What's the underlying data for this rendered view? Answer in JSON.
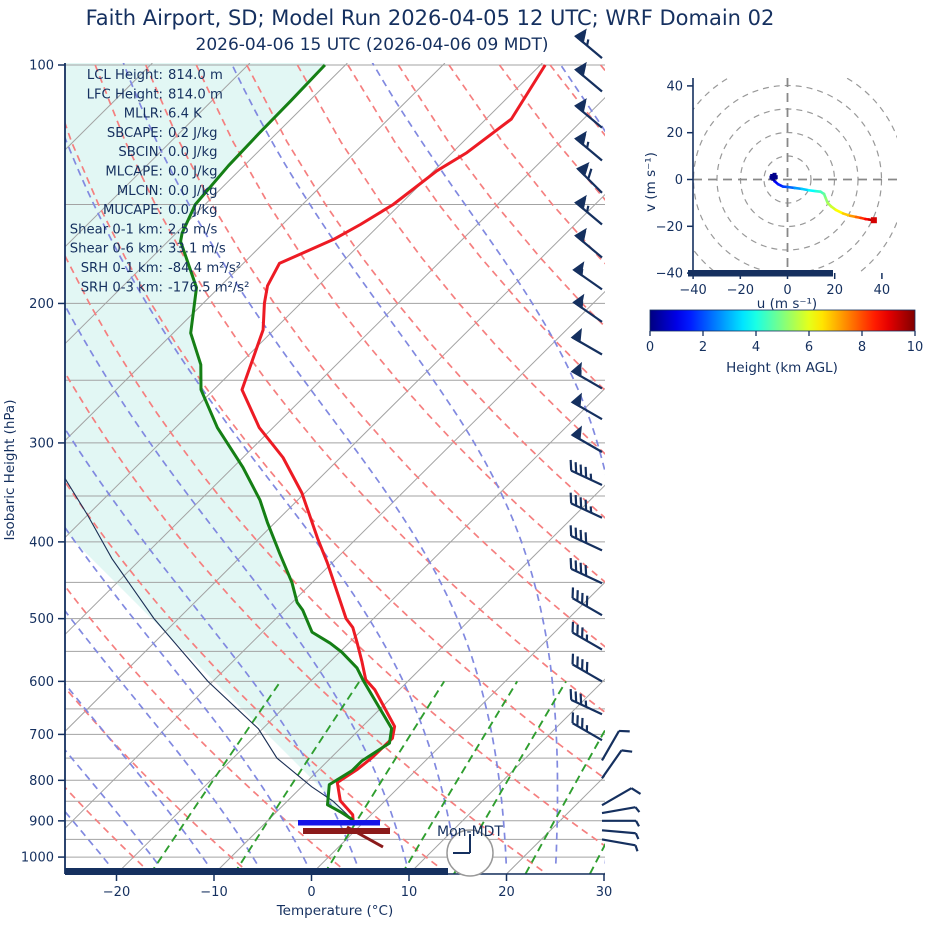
{
  "header": {
    "title": "Faith Airport, SD; Model Run 2026-04-05 12 UTC; WRF Domain 02",
    "subtitle": "2026-04-06 15 UTC  (2026-04-06 09 MDT)"
  },
  "colors": {
    "navy": "#15305f",
    "temperature": "#ed1b24",
    "dewpoint": "#157f15",
    "parcel": "#1b2f55",
    "dry_adiabat": "#f57f7f",
    "moist_adiabat": "#8189e0",
    "mixing_ratio": "#2f9e2f",
    "gridline": "#a3a3a3",
    "shading": "#e2f7f4",
    "surface_temp_bar": "#8b1a1a",
    "surface_dew_bar": "#1414e8",
    "hodo_ring": "#999999"
  },
  "skewt": {
    "xlabel": "Temperature (°C)",
    "ylabel": "Isobaric Height (hPa)",
    "x_ticks": [
      "−20",
      "−10",
      "0",
      "10",
      "20",
      "30"
    ],
    "x_tick_values": [
      -20,
      -10,
      0,
      10,
      20,
      30
    ],
    "y_ticks": [
      "100",
      "200",
      "300",
      "400",
      "500",
      "600",
      "700",
      "800",
      "900",
      "1000"
    ],
    "y_tick_values": [
      100,
      200,
      300,
      400,
      500,
      600,
      700,
      800,
      900,
      1000
    ],
    "clock_label": "Mon-MDT",
    "stats": [
      {
        "label": "LCL Height:",
        "value": "814.0 m"
      },
      {
        "label": "LFC Height:",
        "value": "814.0 m"
      },
      {
        "label": "MLLR:",
        "value": "6.4 K"
      },
      {
        "label": "SBCAPE:",
        "value": "0.2 J/kg"
      },
      {
        "label": "SBCIN:",
        "value": "0.0 J/kg"
      },
      {
        "label": "MLCAPE:",
        "value": "0.0 J/kg"
      },
      {
        "label": "MLCIN:",
        "value": "0.0 J/kg"
      },
      {
        "label": "MUCAPE:",
        "value": "0.0 J/kg"
      },
      {
        "label": "Shear 0-1 km:",
        "value": "2.5 m/s"
      },
      {
        "label": "Shear 0-6 km:",
        "value": "33.1 m/s"
      },
      {
        "label": "SRH 0-1 km:",
        "value": "-84.4 m²/s²"
      },
      {
        "label": "SRH 0-3 km:",
        "value": "-176.5 m²/s²"
      }
    ]
  },
  "chart_data": {
    "type": "skewt-sounding",
    "pressure_range_hPa": [
      100,
      1050
    ],
    "temperature_range_C": [
      -25.5,
      30.1
    ],
    "surface_pressure_hPa": 898,
    "temperature_profile_pT": [
      [
        898,
        -1.3
      ],
      [
        884,
        -1.9
      ],
      [
        849,
        -4.6
      ],
      [
        805,
        -6.8
      ],
      [
        776,
        -6.1
      ],
      [
        750,
        -5.8
      ],
      [
        708,
        -5.7
      ],
      [
        684,
        -6.7
      ],
      [
        615,
        -12.5
      ],
      [
        597,
        -14.5
      ],
      [
        567,
        -16.7
      ],
      [
        536,
        -19.2
      ],
      [
        513,
        -21.2
      ],
      [
        500,
        -22.8
      ],
      [
        425,
        -30.5
      ],
      [
        396,
        -34.0
      ],
      [
        347,
        -40.3
      ],
      [
        313,
        -45.9
      ],
      [
        287,
        -51.4
      ],
      [
        257,
        -57.1
      ],
      [
        216,
        -61.1
      ],
      [
        200,
        -63.7
      ],
      [
        190,
        -65.2
      ],
      [
        178,
        -66.3
      ],
      [
        166,
        -63.2
      ],
      [
        159,
        -62.0
      ],
      [
        150,
        -60.7
      ],
      [
        136,
        -59.7
      ],
      [
        129,
        -58.5
      ],
      [
        117,
        -57.4
      ],
      [
        100,
        -59.5
      ]
    ],
    "dewpoint_profile_pT": [
      [
        898,
        -1.3
      ],
      [
        879,
        -3.2
      ],
      [
        859,
        -5.5
      ],
      [
        810,
        -7.4
      ],
      [
        778,
        -6.5
      ],
      [
        756,
        -6.5
      ],
      [
        718,
        -5.5
      ],
      [
        688,
        -6.8
      ],
      [
        598,
        -14.7
      ],
      [
        577,
        -16.6
      ],
      [
        551,
        -19.8
      ],
      [
        537,
        -21.9
      ],
      [
        520,
        -24.9
      ],
      [
        488,
        -28.1
      ],
      [
        477,
        -29.5
      ],
      [
        450,
        -32.1
      ],
      [
        414,
        -36.3
      ],
      [
        378,
        -40.8
      ],
      [
        354,
        -43.9
      ],
      [
        322,
        -49.0
      ],
      [
        287,
        -55.7
      ],
      [
        257,
        -61.3
      ],
      [
        239,
        -63.9
      ],
      [
        218,
        -68.2
      ],
      [
        191,
        -72.3
      ],
      [
        167,
        -78.7
      ],
      [
        163,
        -79.4
      ],
      [
        150,
        -81.0
      ],
      [
        134,
        -81.6
      ],
      [
        122,
        -81.8
      ],
      [
        111,
        -81.9
      ],
      [
        100,
        -82.1
      ]
    ],
    "parcel_profile_pT": [
      [
        898,
        -1.3
      ],
      [
        850,
        -5.3
      ],
      [
        815,
        -9.0
      ],
      [
        750,
        -15.5
      ],
      [
        689,
        -20.4
      ],
      [
        600,
        -30.5
      ],
      [
        500,
        -42.5
      ],
      [
        420,
        -53.0
      ],
      [
        370,
        -60.0
      ],
      [
        332,
        -66.2
      ]
    ],
    "wind_barbs": [
      {
        "p": 98,
        "dir": 310,
        "spd": 65
      },
      {
        "p": 108,
        "dir": 310,
        "spd": 60
      },
      {
        "p": 120,
        "dir": 310,
        "spd": 60
      },
      {
        "p": 132,
        "dir": 310,
        "spd": 65
      },
      {
        "p": 145,
        "dir": 315,
        "spd": 70
      },
      {
        "p": 159,
        "dir": 310,
        "spd": 65
      },
      {
        "p": 175,
        "dir": 310,
        "spd": 60
      },
      {
        "p": 192,
        "dir": 305,
        "spd": 55
      },
      {
        "p": 211,
        "dir": 305,
        "spd": 55
      },
      {
        "p": 232,
        "dir": 300,
        "spd": 50
      },
      {
        "p": 256,
        "dir": 300,
        "spd": 55
      },
      {
        "p": 280,
        "dir": 300,
        "spd": 50
      },
      {
        "p": 308,
        "dir": 300,
        "spd": 50
      },
      {
        "p": 339,
        "dir": 295,
        "spd": 45
      },
      {
        "p": 373,
        "dir": 295,
        "spd": 45
      },
      {
        "p": 410,
        "dir": 295,
        "spd": 40
      },
      {
        "p": 451,
        "dir": 295,
        "spd": 40
      },
      {
        "p": 495,
        "dir": 300,
        "spd": 40
      },
      {
        "p": 547,
        "dir": 300,
        "spd": 35
      },
      {
        "p": 600,
        "dir": 300,
        "spd": 40
      },
      {
        "p": 660,
        "dir": 295,
        "spd": 35
      },
      {
        "p": 712,
        "dir": 300,
        "spd": 35
      },
      {
        "p": 755,
        "dir": 30,
        "spd": 10
      },
      {
        "p": 795,
        "dir": 35,
        "spd": 10
      },
      {
        "p": 860,
        "dir": 60,
        "spd": 10
      },
      {
        "p": 880,
        "dir": 80,
        "spd": 8
      },
      {
        "p": 900,
        "dir": 90,
        "spd": 5
      },
      {
        "p": 925,
        "dir": 95,
        "spd": 5
      },
      {
        "p": 950,
        "dir": 100,
        "spd": 5
      }
    ],
    "hodograph": {
      "xlabel": "u (m s⁻¹)",
      "ylabel": "v (m s⁻¹)",
      "tick_labels": [
        "−40",
        "−20",
        "0",
        "20",
        "40"
      ],
      "tick_values": [
        -40,
        -20,
        0,
        20,
        40
      ],
      "ring_radii": [
        10,
        20,
        30,
        40,
        50
      ],
      "trace_huv": [
        [
          0,
          -6,
          1
        ],
        [
          0.3,
          -6.5,
          1.7
        ],
        [
          0.6,
          -5.2,
          2
        ],
        [
          0.8,
          -6,
          0.3
        ],
        [
          1.0,
          -5.5,
          -0.7
        ],
        [
          1.3,
          -4,
          -2
        ],
        [
          1.7,
          -2,
          -3
        ],
        [
          2.0,
          0,
          -3.2
        ],
        [
          2.5,
          3,
          -3.6
        ],
        [
          3.0,
          6,
          -4
        ],
        [
          3.5,
          9,
          -4.6
        ],
        [
          4.0,
          12,
          -5
        ],
        [
          4.3,
          14,
          -5.2
        ],
        [
          4.6,
          15.5,
          -6.2
        ],
        [
          5.0,
          16.2,
          -8
        ],
        [
          5.3,
          17,
          -10
        ],
        [
          5.6,
          18.5,
          -11.5
        ],
        [
          6.0,
          20.5,
          -13
        ],
        [
          6.5,
          23.5,
          -14.5
        ],
        [
          7.0,
          26.5,
          -15.5
        ],
        [
          7.5,
          29,
          -16
        ],
        [
          8.0,
          31,
          -16.4
        ],
        [
          8.5,
          33,
          -16.9
        ],
        [
          9.0,
          34.5,
          -17.1
        ],
        [
          9.5,
          35.6,
          -17.3
        ],
        [
          10,
          36.6,
          -17.4
        ]
      ],
      "origin_cluster_uv": [
        [
          -6,
          1
        ],
        [
          -5.5,
          2
        ],
        [
          -6.5,
          1.5
        ],
        [
          -5,
          1
        ],
        [
          -6,
          0.3
        ],
        [
          -6.8,
          0.8
        ]
      ]
    },
    "colorbar": {
      "label": "Height (km AGL)",
      "tick_labels": [
        "0",
        "2",
        "4",
        "6",
        "8",
        "10"
      ],
      "tick_values": [
        0,
        2,
        4,
        6,
        8,
        10
      ],
      "min": 0,
      "max": 10
    }
  }
}
